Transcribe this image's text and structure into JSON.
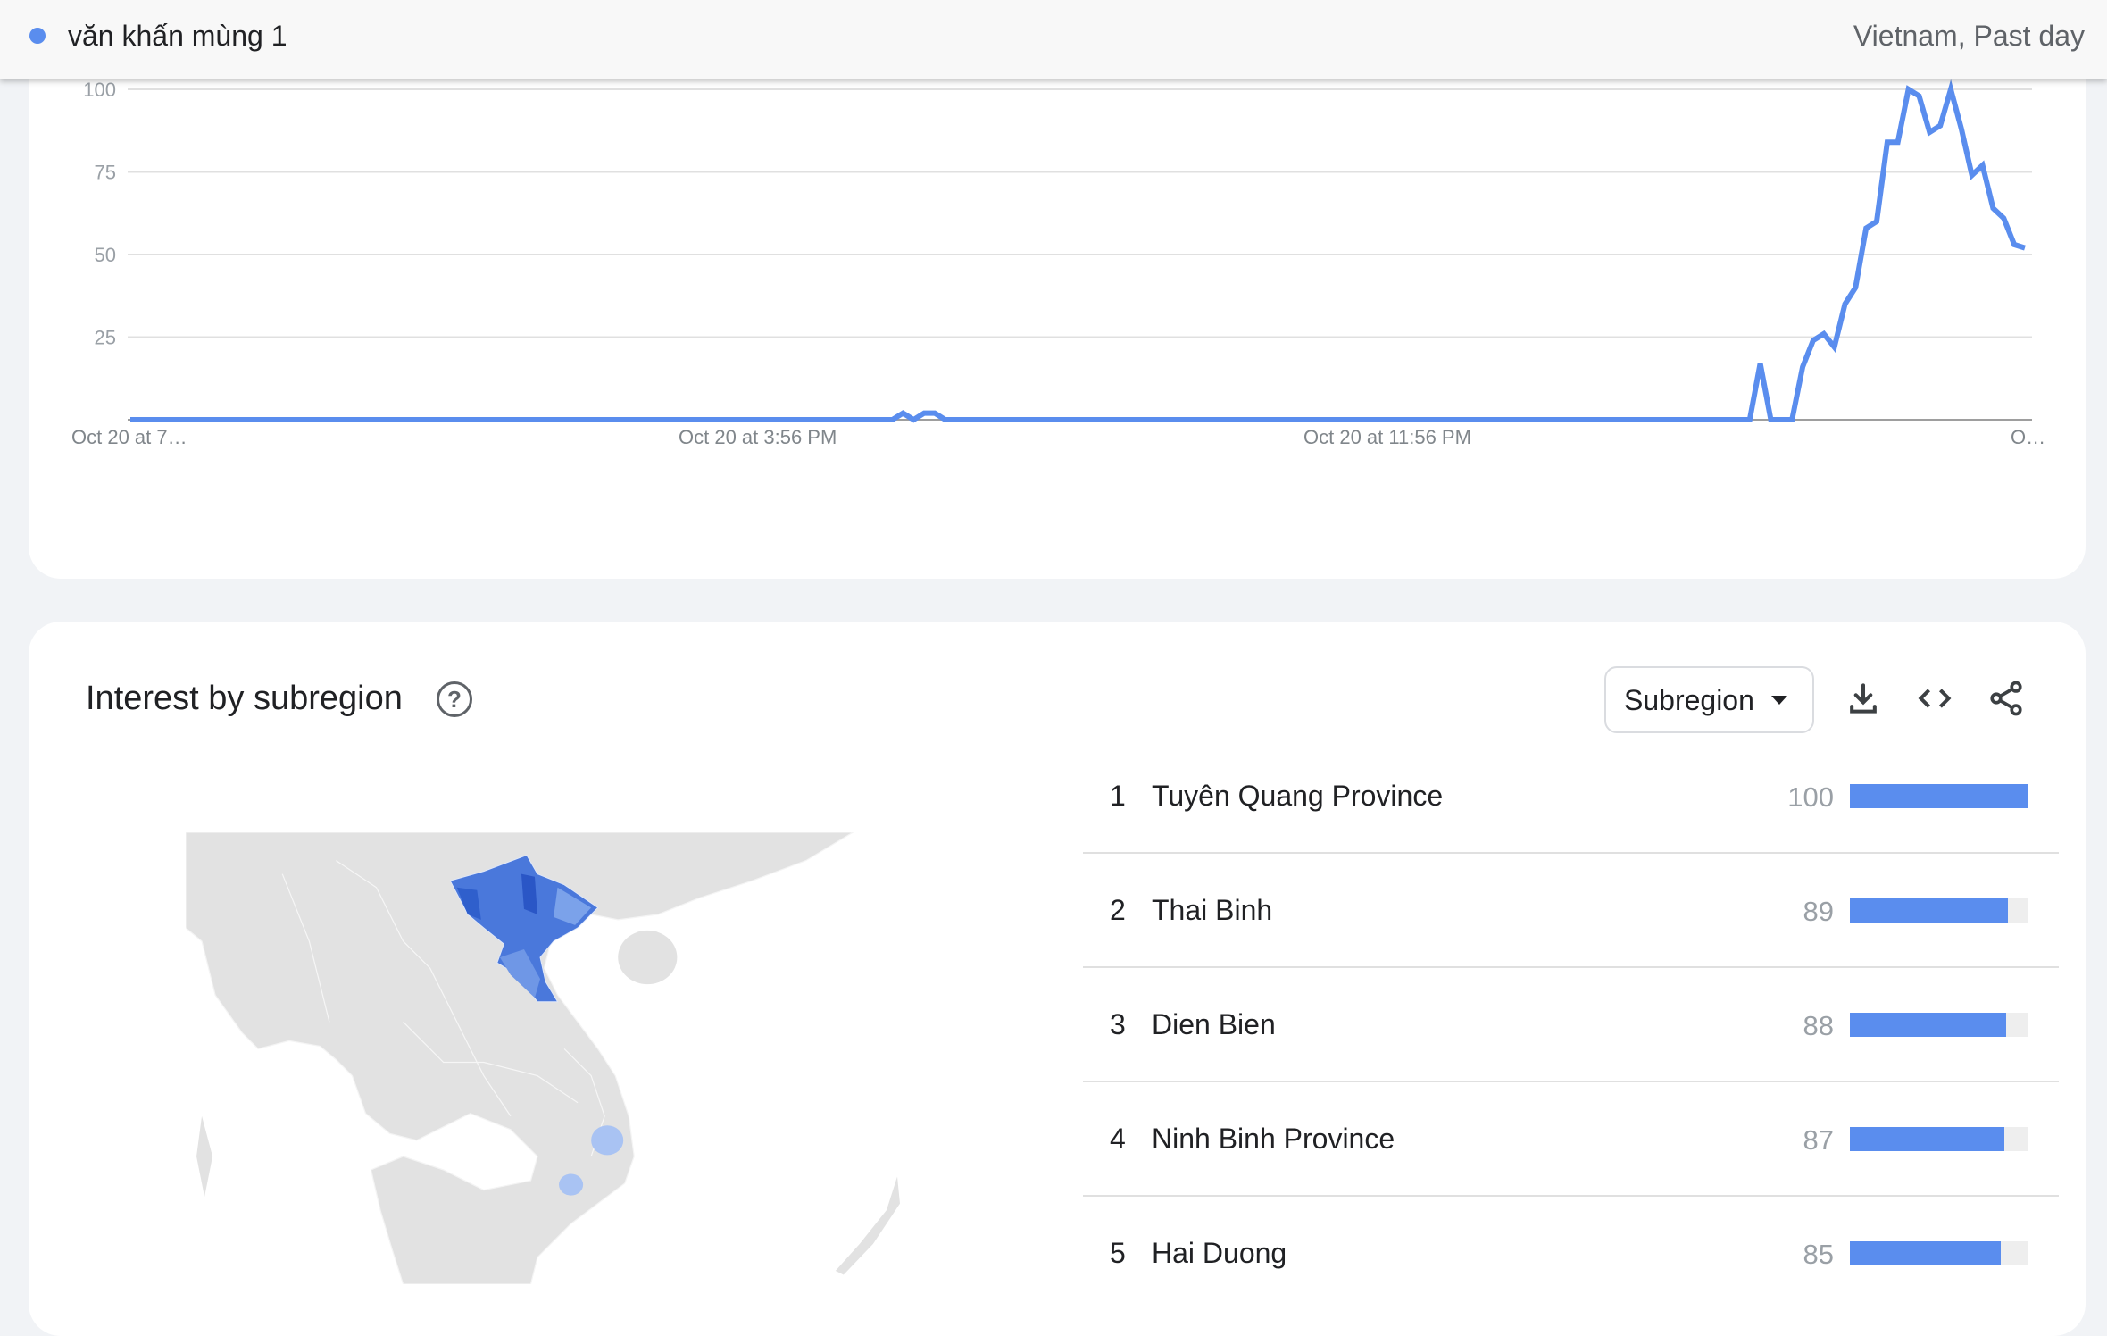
{
  "header": {
    "term": "văn khấn mùng 1",
    "scope": "Vietnam, Past day",
    "series_color": "#5a8dee"
  },
  "chart_data": {
    "type": "line",
    "title": "",
    "xlabel": "",
    "ylabel": "",
    "ylim": [
      0,
      100
    ],
    "grid": true,
    "y_ticks": [
      "25",
      "50",
      "75",
      "100"
    ],
    "x_tick_labels": [
      "Oct 20 at 7…",
      "Oct 20 at 3:56 PM",
      "Oct 20 at 11:56 PM",
      "O…"
    ],
    "series": [
      {
        "color": "#5a8dee",
        "values": [
          0,
          0,
          0,
          0,
          0,
          0,
          0,
          0,
          0,
          0,
          0,
          0,
          0,
          0,
          0,
          0,
          0,
          0,
          0,
          0,
          0,
          0,
          0,
          0,
          0,
          0,
          0,
          0,
          0,
          0,
          0,
          0,
          0,
          0,
          0,
          0,
          0,
          0,
          0,
          0,
          0,
          0,
          0,
          0,
          0,
          0,
          0,
          0,
          0,
          0,
          0,
          0,
          0,
          0,
          0,
          0,
          0,
          0,
          0,
          0,
          0,
          0,
          0,
          0,
          0,
          0,
          0,
          0,
          0,
          0,
          0,
          0,
          0,
          2,
          0,
          2,
          2,
          0,
          0,
          0,
          0,
          0,
          0,
          0,
          0,
          0,
          0,
          0,
          0,
          0,
          0,
          0,
          0,
          0,
          0,
          0,
          0,
          0,
          0,
          0,
          0,
          0,
          0,
          0,
          0,
          0,
          0,
          0,
          0,
          0,
          0,
          0,
          0,
          0,
          0,
          0,
          0,
          0,
          0,
          0,
          0,
          0,
          0,
          0,
          0,
          0,
          0,
          0,
          0,
          0,
          0,
          0,
          0,
          0,
          0,
          0,
          0,
          0,
          0,
          0,
          0,
          0,
          0,
          0,
          0,
          0,
          0,
          0,
          0,
          0,
          0,
          0,
          0,
          0,
          17,
          0,
          0,
          0,
          16,
          24,
          26,
          22,
          35,
          40,
          58,
          60,
          84,
          84,
          100,
          98,
          87,
          89,
          100,
          88,
          74,
          77,
          64,
          61,
          53,
          52
        ]
      }
    ]
  },
  "subregion": {
    "title": "Interest by subregion",
    "help_icon": "help-circle-icon",
    "dropdown_value": "Subregion",
    "actions": [
      "download-icon",
      "embed-code-icon",
      "share-icon"
    ],
    "bar_color": "#5a8dee",
    "rows": [
      {
        "rank": "1",
        "name": "Tuyên Quang Province",
        "value": "100",
        "score": 100
      },
      {
        "rank": "2",
        "name": "Thai Binh",
        "value": "89",
        "score": 89
      },
      {
        "rank": "3",
        "name": "Dien Bien",
        "value": "88",
        "score": 88
      },
      {
        "rank": "4",
        "name": "Ninh Binh Province",
        "value": "87",
        "score": 87
      },
      {
        "rank": "5",
        "name": "Hai Duong",
        "value": "85",
        "score": 85
      }
    ]
  }
}
